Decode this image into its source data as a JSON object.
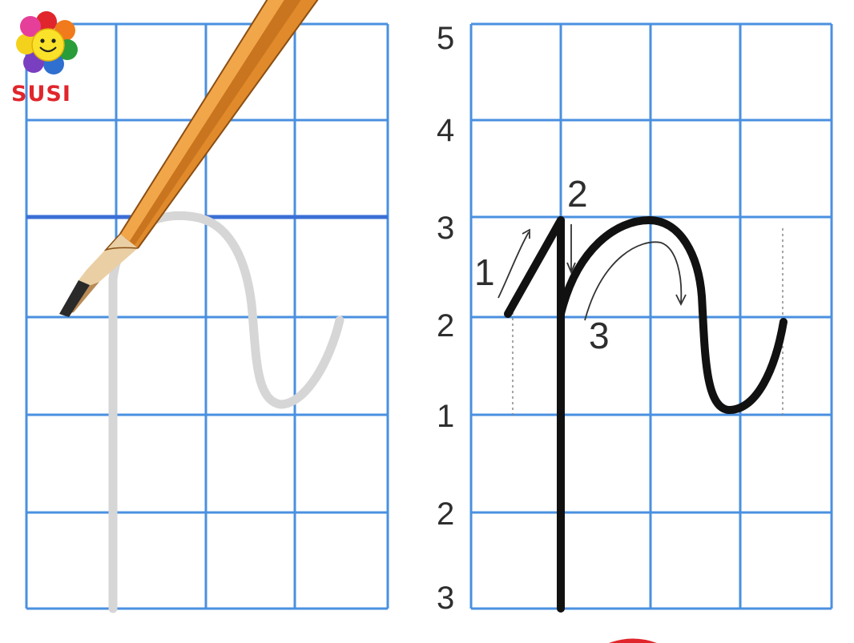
{
  "logo": {
    "name": "SUSI",
    "icon": "smiling-flower-icon"
  },
  "left_panel": {
    "description": "practice grid with faded letter trace",
    "pencil_icon": "pencil-icon"
  },
  "right_panel": {
    "row_labels": [
      "5",
      "4",
      "3",
      "2",
      "1",
      "2",
      "3"
    ],
    "stroke_numbers": [
      "1",
      "2",
      "3"
    ]
  },
  "colors": {
    "grid_line": "#4a90e0",
    "thick_line": "#3a6fd6",
    "letter": "#111111",
    "trace": "#d6d6d6",
    "logo_text": "#e0262c",
    "pencil_body": "#e08a2c"
  }
}
